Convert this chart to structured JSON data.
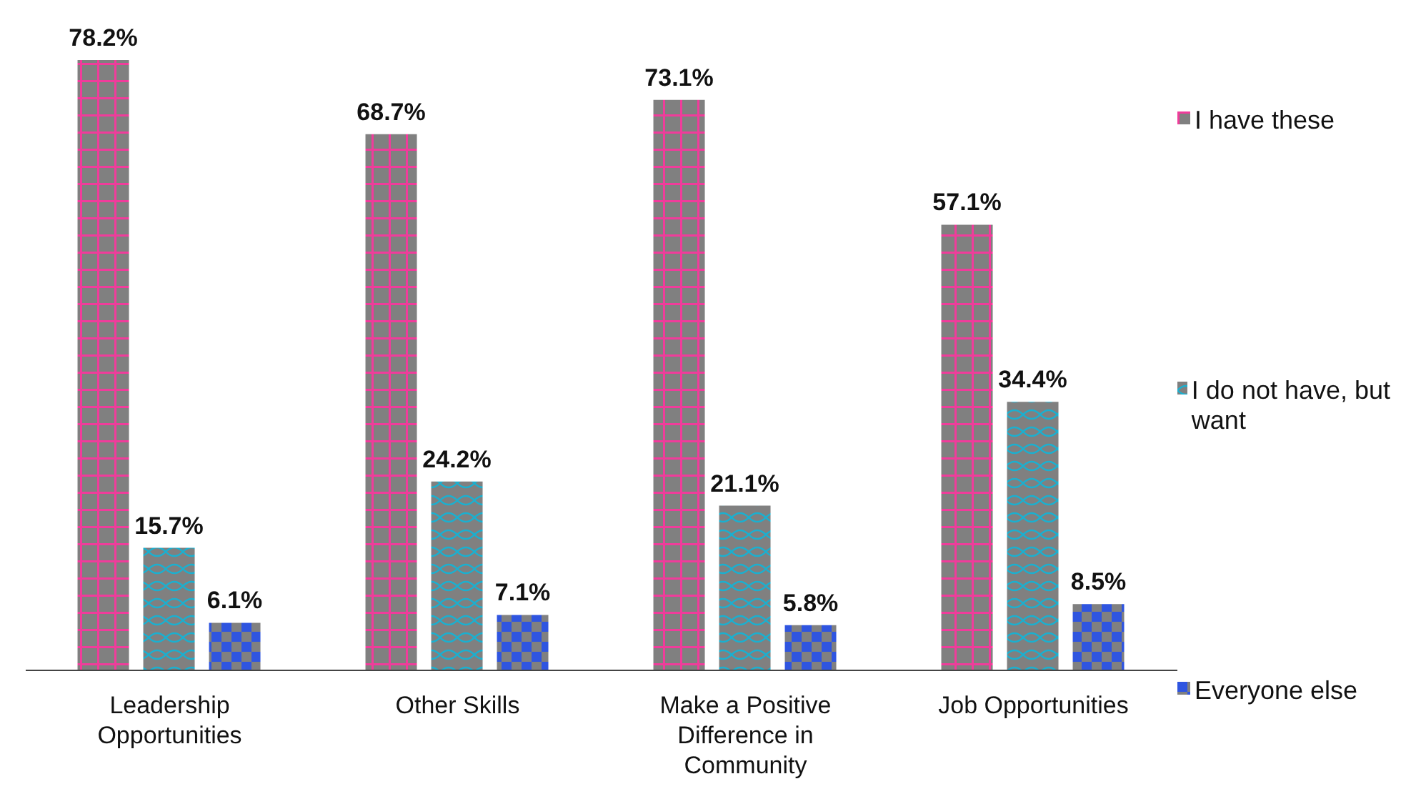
{
  "chart_data": {
    "type": "bar",
    "categories": [
      "Leadership Opportunities",
      "Other Skills",
      "Make a Positive Difference in Community",
      "Job Opportunities"
    ],
    "series": [
      {
        "name": "I have these",
        "color": "#f03c9b",
        "values": [
          78.2,
          68.7,
          73.1,
          57.1
        ],
        "value_labels": [
          "78.2%",
          "68.7%",
          "73.1%",
          "57.1%"
        ]
      },
      {
        "name": "I do not have, but want",
        "color": "#1ab0d0",
        "values": [
          15.7,
          24.2,
          21.1,
          34.4
        ],
        "value_labels": [
          "15.7%",
          "24.2%",
          "21.1%",
          "34.4%"
        ]
      },
      {
        "name": "Everyone else",
        "color": "#2f55e0",
        "values": [
          6.1,
          7.1,
          5.8,
          8.5
        ],
        "value_labels": [
          "6.1%",
          "7.1%",
          "5.8%",
          "8.5%"
        ]
      }
    ],
    "legend": "right"
  }
}
